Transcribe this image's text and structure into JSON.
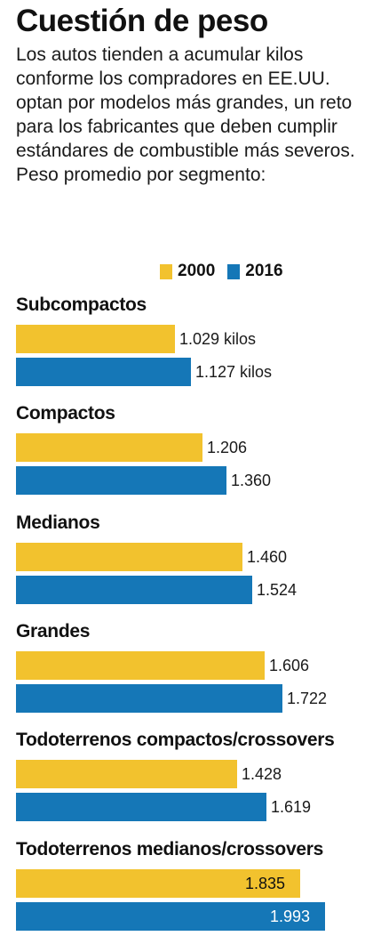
{
  "title": "Cuestión de peso",
  "subtitle": "Los autos tienden a acumular kilos conforme los compradores en EE.UU. optan por modelos más grandes, un reto para los fabricantes que deben cumplir estándares de combustible más severos. Peso promedio por segmento:",
  "colors": {
    "y2000": "#f2c22e",
    "y2016": "#1577b7"
  },
  "chart_data": {
    "type": "bar",
    "orientation": "horizontal",
    "title": "Cuestión de peso",
    "categories": [
      "Subcompactos",
      "Compactos",
      "Medianos",
      "Grandes",
      "Todoterrenos compactos/crossovers",
      "Todoterrenos medianos/crossovers"
    ],
    "series": [
      {
        "name": "2000",
        "values": [
          1029,
          1206,
          1460,
          1606,
          1428,
          1835
        ],
        "labels": [
          "1.029 kilos",
          "1.206",
          "1.460",
          "1.606",
          "1.428",
          "1.835"
        ]
      },
      {
        "name": "2016",
        "values": [
          1127,
          1360,
          1524,
          1722,
          1619,
          1993
        ],
        "labels": [
          "1.127 kilos",
          "1.360",
          "1.524",
          "1.722",
          "1.619",
          "1.993"
        ]
      }
    ],
    "unit": "kilos",
    "legend": "top-right"
  }
}
